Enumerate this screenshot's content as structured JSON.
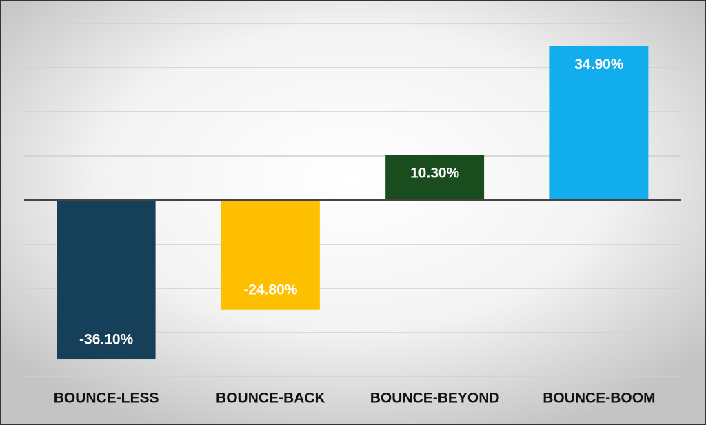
{
  "chart_data": {
    "type": "bar",
    "categories": [
      "BOUNCE-LESS",
      "BOUNCE-BACK",
      "BOUNCE-BEYOND",
      "BOUNCE-BOOM"
    ],
    "values": [
      -36.1,
      -24.8,
      10.3,
      34.9
    ],
    "value_labels": [
      "-36.10%",
      "-24.80%",
      "10.30%",
      "34.90%"
    ],
    "colors": [
      "#16405a",
      "#fdbf00",
      "#1a4d1e",
      "#12adec"
    ],
    "ylim": [
      -40,
      40
    ],
    "yticks": [
      -40,
      -30,
      -20,
      -10,
      0,
      10,
      20,
      30,
      40
    ],
    "grid": true
  }
}
